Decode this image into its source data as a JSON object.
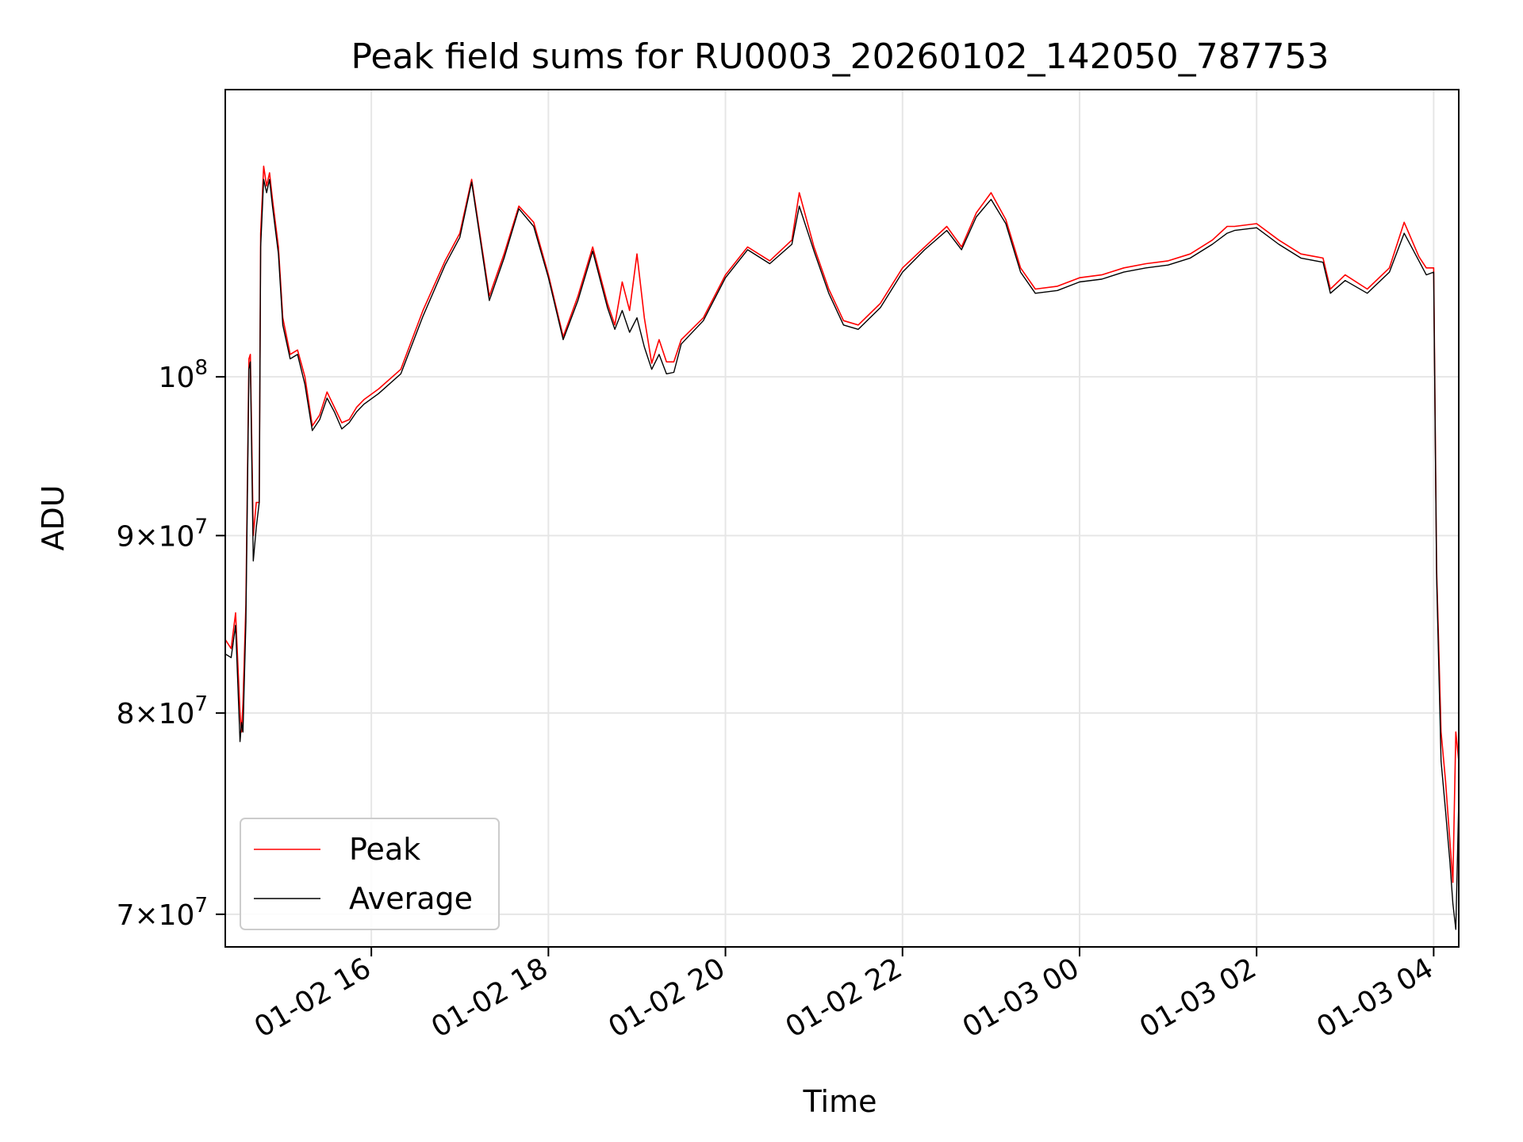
{
  "chart_data": {
    "type": "line",
    "title": "Peak field sums for RU0003_20260102_142050_787753",
    "xlabel": "Time",
    "ylabel": "ADU",
    "yscale": "log",
    "xlim": [
      "2026-01-02 14:21",
      "2026-01-03 04:17"
    ],
    "ylim": [
      68500000,
      121000000
    ],
    "grid": true,
    "legend": "lower-left",
    "x_ticks": [
      {
        "label": "01-02 16",
        "value": "2026-01-02 16:00"
      },
      {
        "label": "01-02 18",
        "value": "2026-01-02 18:00"
      },
      {
        "label": "01-02 20",
        "value": "2026-01-02 20:00"
      },
      {
        "label": "01-02 22",
        "value": "2026-01-02 22:00"
      },
      {
        "label": "01-03 00",
        "value": "2026-01-03 00:00"
      },
      {
        "label": "01-03 02",
        "value": "2026-01-03 02:00"
      },
      {
        "label": "01-03 04",
        "value": "2026-01-03 04:00"
      }
    ],
    "y_ticks": [
      {
        "label_base": "10",
        "label_exp": "8",
        "mantissa": "",
        "value": 100000000
      },
      {
        "label_base": "10",
        "label_exp": "7",
        "mantissa": "9",
        "value": 90000000
      },
      {
        "label_base": "10",
        "label_exp": "7",
        "mantissa": "8",
        "value": 80000000
      },
      {
        "label_base": "10",
        "label_exp": "7",
        "mantissa": "7",
        "value": 70000000
      }
    ],
    "series": [
      {
        "name": "Peak",
        "color": "#ff0000",
        "x": [
          "2026-01-02 14:21",
          "2026-01-02 14:25",
          "2026-01-02 14:28",
          "2026-01-02 14:31",
          "2026-01-02 14:32",
          "2026-01-02 14:33",
          "2026-01-02 14:35",
          "2026-01-02 14:37",
          "2026-01-02 14:38",
          "2026-01-02 14:40",
          "2026-01-02 14:42",
          "2026-01-02 14:44",
          "2026-01-02 14:45",
          "2026-01-02 14:47",
          "2026-01-02 14:49",
          "2026-01-02 14:51",
          "2026-01-02 14:53",
          "2026-01-02 14:57",
          "2026-01-02 15:00",
          "2026-01-02 15:05",
          "2026-01-02 15:10",
          "2026-01-02 15:15",
          "2026-01-02 15:20",
          "2026-01-02 15:25",
          "2026-01-02 15:30",
          "2026-01-02 15:35",
          "2026-01-02 15:40",
          "2026-01-02 15:45",
          "2026-01-02 15:50",
          "2026-01-02 15:55",
          "2026-01-02 16:05",
          "2026-01-02 16:20",
          "2026-01-02 16:35",
          "2026-01-02 16:50",
          "2026-01-02 17:00",
          "2026-01-02 17:08",
          "2026-01-02 17:20",
          "2026-01-02 17:30",
          "2026-01-02 17:40",
          "2026-01-02 17:50",
          "2026-01-02 18:00",
          "2026-01-02 18:10",
          "2026-01-02 18:20",
          "2026-01-02 18:30",
          "2026-01-02 18:40",
          "2026-01-02 18:45",
          "2026-01-02 18:50",
          "2026-01-02 18:55",
          "2026-01-02 19:00",
          "2026-01-02 19:05",
          "2026-01-02 19:10",
          "2026-01-02 19:15",
          "2026-01-02 19:20",
          "2026-01-02 19:25",
          "2026-01-02 19:30",
          "2026-01-02 19:45",
          "2026-01-02 20:00",
          "2026-01-02 20:15",
          "2026-01-02 20:30",
          "2026-01-02 20:45",
          "2026-01-02 20:50",
          "2026-01-02 21:00",
          "2026-01-02 21:10",
          "2026-01-02 21:20",
          "2026-01-02 21:30",
          "2026-01-02 21:45",
          "2026-01-02 22:00",
          "2026-01-02 22:15",
          "2026-01-02 22:30",
          "2026-01-02 22:40",
          "2026-01-02 22:50",
          "2026-01-02 23:00",
          "2026-01-02 23:10",
          "2026-01-02 23:20",
          "2026-01-02 23:30",
          "2026-01-02 23:45",
          "2026-01-03 00:00",
          "2026-01-03 00:15",
          "2026-01-03 00:30",
          "2026-01-03 00:45",
          "2026-01-03 01:00",
          "2026-01-03 01:15",
          "2026-01-03 01:30",
          "2026-01-03 01:40",
          "2026-01-03 01:45",
          "2026-01-03 02:00",
          "2026-01-03 02:15",
          "2026-01-03 02:30",
          "2026-01-03 02:45",
          "2026-01-03 02:50",
          "2026-01-03 03:00",
          "2026-01-03 03:15",
          "2026-01-03 03:30",
          "2026-01-03 03:40",
          "2026-01-03 03:50",
          "2026-01-03 03:55",
          "2026-01-03 04:00",
          "2026-01-03 04:02",
          "2026-01-03 04:05",
          "2026-01-03 04:08",
          "2026-01-03 04:11",
          "2026-01-03 04:13",
          "2026-01-03 04:15",
          "2026-01-03 04:17"
        ],
        "values": [
          84000000,
          83500000,
          85500000,
          80000000,
          79000000,
          80500000,
          86000000,
          101200000,
          101500000,
          90000000,
          92000000,
          92000000,
          110000000,
          115000000,
          113500000,
          114500000,
          112500000,
          109000000,
          104000000,
          101500000,
          101800000,
          100000000,
          96800000,
          97500000,
          99000000,
          98000000,
          97000000,
          97200000,
          98000000,
          98500000,
          99200000,
          100500000,
          104500000,
          108000000,
          110000000,
          114000000,
          105500000,
          108500000,
          112000000,
          110800000,
          107000000,
          102700000,
          105500000,
          109000000,
          105000000,
          103500000,
          106500000,
          104500000,
          108500000,
          104000000,
          100900000,
          102500000,
          101000000,
          101000000,
          102500000,
          104000000,
          107000000,
          109000000,
          108000000,
          109500000,
          113000000,
          109000000,
          106000000,
          103800000,
          103500000,
          105000000,
          107500000,
          109000000,
          110500000,
          109000000,
          111500000,
          113000000,
          111000000,
          107500000,
          106000000,
          106200000,
          106800000,
          107000000,
          107500000,
          107800000,
          108000000,
          108500000,
          109500000,
          110500000,
          110500000,
          110700000,
          109500000,
          108500000,
          108200000,
          106000000,
          107000000,
          106000000,
          107500000,
          110800000,
          108300000,
          107500000,
          107500000,
          88000000,
          79000000,
          76500000,
          73500000,
          71500000,
          79000000,
          77500000
        ]
      },
      {
        "name": "Average",
        "color": "#000000",
        "x": [
          "2026-01-02 14:21",
          "2026-01-02 14:25",
          "2026-01-02 14:28",
          "2026-01-02 14:31",
          "2026-01-02 14:32",
          "2026-01-02 14:33",
          "2026-01-02 14:35",
          "2026-01-02 14:37",
          "2026-01-02 14:38",
          "2026-01-02 14:40",
          "2026-01-02 14:42",
          "2026-01-02 14:44",
          "2026-01-02 14:45",
          "2026-01-02 14:47",
          "2026-01-02 14:49",
          "2026-01-02 14:51",
          "2026-01-02 14:53",
          "2026-01-02 14:57",
          "2026-01-02 15:00",
          "2026-01-02 15:05",
          "2026-01-02 15:10",
          "2026-01-02 15:15",
          "2026-01-02 15:20",
          "2026-01-02 15:25",
          "2026-01-02 15:30",
          "2026-01-02 15:35",
          "2026-01-02 15:40",
          "2026-01-02 15:45",
          "2026-01-02 15:50",
          "2026-01-02 15:55",
          "2026-01-02 16:05",
          "2026-01-02 16:20",
          "2026-01-02 16:35",
          "2026-01-02 16:50",
          "2026-01-02 17:00",
          "2026-01-02 17:08",
          "2026-01-02 17:20",
          "2026-01-02 17:30",
          "2026-01-02 17:40",
          "2026-01-02 17:50",
          "2026-01-02 18:00",
          "2026-01-02 18:10",
          "2026-01-02 18:20",
          "2026-01-02 18:30",
          "2026-01-02 18:40",
          "2026-01-02 18:45",
          "2026-01-02 18:50",
          "2026-01-02 18:55",
          "2026-01-02 19:00",
          "2026-01-02 19:05",
          "2026-01-02 19:10",
          "2026-01-02 19:15",
          "2026-01-02 19:20",
          "2026-01-02 19:25",
          "2026-01-02 19:30",
          "2026-01-02 19:45",
          "2026-01-02 20:00",
          "2026-01-02 20:15",
          "2026-01-02 20:30",
          "2026-01-02 20:45",
          "2026-01-02 20:50",
          "2026-01-02 21:00",
          "2026-01-02 21:10",
          "2026-01-02 21:20",
          "2026-01-02 21:30",
          "2026-01-02 21:45",
          "2026-01-02 22:00",
          "2026-01-02 22:15",
          "2026-01-02 22:30",
          "2026-01-02 22:40",
          "2026-01-02 22:50",
          "2026-01-02 23:00",
          "2026-01-02 23:10",
          "2026-01-02 23:20",
          "2026-01-02 23:30",
          "2026-01-02 23:45",
          "2026-01-03 00:00",
          "2026-01-03 00:15",
          "2026-01-03 00:30",
          "2026-01-03 00:45",
          "2026-01-03 01:00",
          "2026-01-03 01:15",
          "2026-01-03 01:30",
          "2026-01-03 01:40",
          "2026-01-03 01:45",
          "2026-01-03 02:00",
          "2026-01-03 02:15",
          "2026-01-03 02:30",
          "2026-01-03 02:45",
          "2026-01-03 02:50",
          "2026-01-03 03:00",
          "2026-01-03 03:15",
          "2026-01-03 03:30",
          "2026-01-03 03:40",
          "2026-01-03 03:50",
          "2026-01-03 03:55",
          "2026-01-03 04:00",
          "2026-01-03 04:02",
          "2026-01-03 04:05",
          "2026-01-03 04:08",
          "2026-01-03 04:11",
          "2026-01-03 04:13",
          "2026-01-03 04:15",
          "2026-01-03 04:17"
        ],
        "values": [
          83200000,
          83000000,
          84800000,
          78500000,
          79500000,
          79000000,
          85000000,
          100500000,
          101000000,
          88500000,
          90500000,
          92000000,
          109000000,
          114000000,
          113000000,
          114000000,
          112000000,
          108500000,
          103500000,
          101200000,
          101500000,
          99500000,
          96500000,
          97200000,
          98600000,
          97700000,
          96600000,
          97000000,
          97700000,
          98200000,
          98900000,
          100200000,
          104100000,
          107700000,
          109700000,
          113800000,
          105200000,
          108200000,
          111800000,
          110500000,
          106800000,
          102500000,
          105200000,
          108700000,
          104700000,
          103200000,
          104500000,
          103000000,
          104000000,
          102000000,
          100500000,
          101500000,
          100200000,
          100300000,
          102200000,
          103800000,
          106800000,
          108800000,
          107800000,
          109200000,
          112000000,
          108700000,
          105700000,
          103500000,
          103200000,
          104700000,
          107200000,
          108800000,
          110200000,
          108800000,
          111200000,
          112500000,
          110700000,
          107200000,
          105700000,
          105900000,
          106500000,
          106700000,
          107200000,
          107500000,
          107700000,
          108200000,
          109200000,
          110000000,
          110200000,
          110400000,
          109200000,
          108200000,
          107900000,
          105700000,
          106600000,
          105700000,
          107200000,
          110000000,
          108000000,
          107000000,
          107200000,
          87500000,
          77500000,
          75000000,
          72500000,
          70500000,
          69300000,
          75500000
        ]
      }
    ]
  }
}
